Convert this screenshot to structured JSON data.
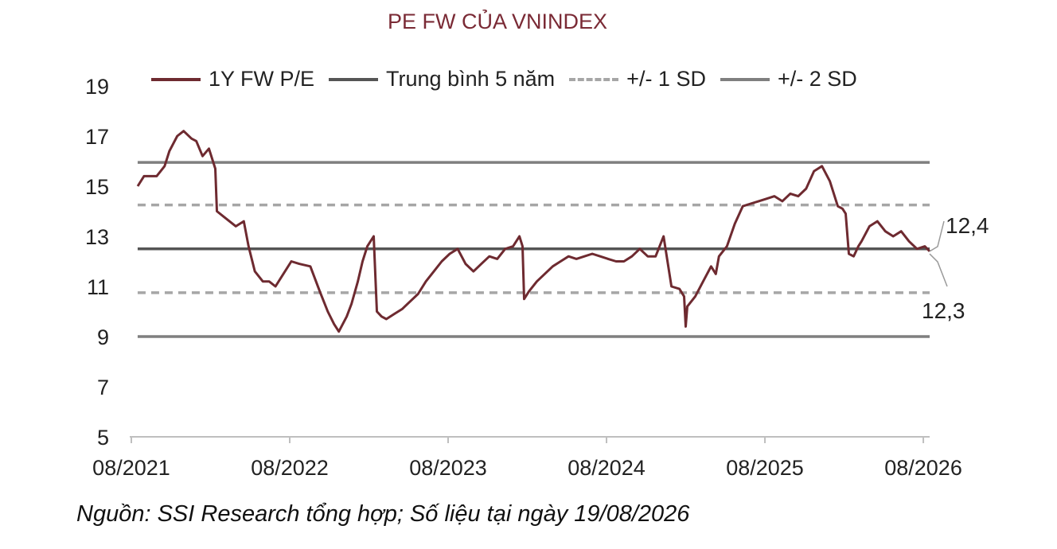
{
  "chart_data": {
    "type": "line",
    "title": "PE FW CỦA VNINDEX",
    "xlabel": "",
    "ylabel": "",
    "ylim": [
      5,
      19
    ],
    "yticks": [
      5,
      7,
      9,
      11,
      13,
      15,
      17,
      19
    ],
    "xticks": [
      "08/2021",
      "08/2022",
      "08/2023",
      "08/2024",
      "08/2025",
      "08/2026"
    ],
    "xlim": [
      2021.58,
      2026.63
    ],
    "grid": false,
    "legend_position": "top",
    "series": [
      {
        "name": "1Y FW P/E",
        "color": "#6e2a30",
        "style": "solid",
        "x": [
          2021.63,
          2021.67,
          2021.75,
          2021.8,
          2021.83,
          2021.88,
          2021.92,
          2021.97,
          2022.0,
          2022.04,
          2022.08,
          2022.12,
          2022.13,
          2022.17,
          2022.25,
          2022.3,
          2022.33,
          2022.37,
          2022.42,
          2022.46,
          2022.5,
          2022.55,
          2022.6,
          2022.65,
          2022.72,
          2022.78,
          2022.83,
          2022.87,
          2022.9,
          2022.95,
          2022.98,
          2023.02,
          2023.05,
          2023.08,
          2023.12,
          2023.14,
          2023.17,
          2023.2,
          2023.25,
          2023.3,
          2023.35,
          2023.4,
          2023.45,
          2023.5,
          2023.55,
          2023.6,
          2023.65,
          2023.7,
          2023.75,
          2023.8,
          2023.85,
          2023.9,
          2023.95,
          2024.0,
          2024.04,
          2024.06,
          2024.07,
          2024.1,
          2024.15,
          2024.2,
          2024.25,
          2024.3,
          2024.35,
          2024.4,
          2024.45,
          2024.5,
          2024.55,
          2024.6,
          2024.65,
          2024.7,
          2024.75,
          2024.8,
          2024.85,
          2024.9,
          2024.95,
          2025.0,
          2025.05,
          2025.08,
          2025.09,
          2025.1,
          2025.15,
          2025.2,
          2025.25,
          2025.28,
          2025.3,
          2025.35,
          2025.4,
          2025.45,
          2025.5,
          2025.55,
          2025.6,
          2025.65,
          2025.7,
          2025.75,
          2025.8,
          2025.85,
          2025.9,
          2025.95,
          2026.0,
          2026.05,
          2026.08,
          2026.1,
          2026.12,
          2026.15,
          2026.18,
          2026.2,
          2026.25,
          2026.3,
          2026.35,
          2026.4,
          2026.45,
          2026.5,
          2026.55,
          2026.6,
          2026.63
        ],
        "values": [
          15.0,
          15.4,
          15.4,
          15.8,
          16.4,
          17.0,
          17.2,
          16.9,
          16.8,
          16.2,
          16.5,
          15.7,
          14.0,
          13.8,
          13.4,
          13.6,
          12.6,
          11.6,
          11.2,
          11.2,
          11.0,
          11.5,
          12.0,
          11.9,
          11.8,
          10.8,
          10.0,
          9.5,
          9.2,
          9.8,
          10.3,
          11.2,
          12.0,
          12.6,
          13.0,
          10.0,
          9.8,
          9.7,
          9.9,
          10.1,
          10.4,
          10.7,
          11.2,
          11.6,
          12.0,
          12.3,
          12.5,
          11.9,
          11.6,
          11.9,
          12.2,
          12.1,
          12.5,
          12.6,
          13.0,
          12.6,
          10.5,
          10.8,
          11.2,
          11.5,
          11.8,
          12.0,
          12.2,
          12.1,
          12.2,
          12.3,
          12.2,
          12.1,
          12.0,
          12.0,
          12.2,
          12.5,
          12.2,
          12.2,
          13.0,
          11.0,
          10.9,
          10.6,
          9.4,
          10.2,
          10.6,
          11.2,
          11.8,
          11.5,
          12.2,
          12.6,
          13.5,
          14.2,
          14.3,
          14.4,
          14.5,
          14.6,
          14.4,
          14.7,
          14.6,
          14.9,
          15.6,
          15.8,
          15.2,
          14.2,
          14.1,
          13.9,
          12.3,
          12.2,
          12.6,
          12.8,
          13.4,
          13.6,
          13.2,
          13.0,
          13.2,
          12.8,
          12.5,
          12.6,
          12.4
        ]
      },
      {
        "name": "Trung bình 5 năm",
        "color": "#555555",
        "style": "solid",
        "constant": 12.5
      },
      {
        "name": "+/- 1 SD",
        "color": "#a6a6a6",
        "style": "dashed",
        "constants": [
          14.25,
          10.75
        ]
      },
      {
        "name": "+/- 2 SD",
        "color": "#7f7f7f",
        "style": "solid",
        "constants": [
          15.95,
          9.0
        ]
      }
    ],
    "annotations": [
      {
        "text": "12,4",
        "value": 12.4
      },
      {
        "text": "12,3",
        "value": 12.3
      }
    ],
    "source": "Nguồn: SSI Research tổng hợp; Số liệu tại ngày 19/08/2026"
  }
}
